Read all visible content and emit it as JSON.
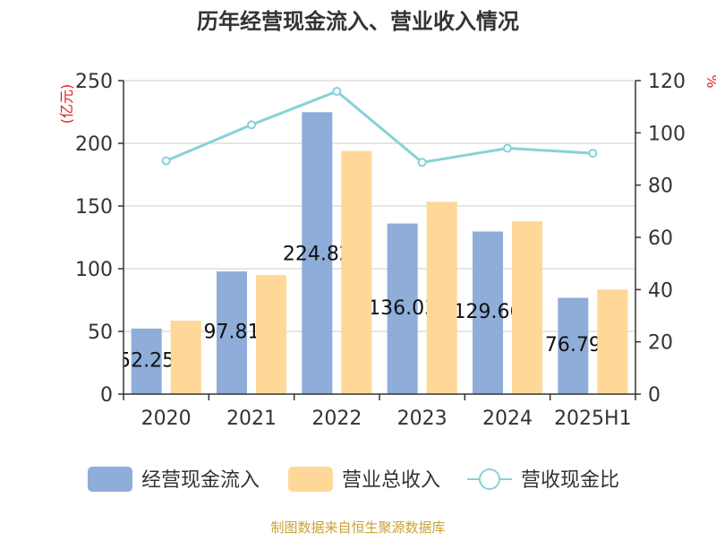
{
  "chart_data": {
    "type": "bar",
    "title": "历年经营现金流入、营业收入情况",
    "categories": [
      "2020",
      "2021",
      "2022",
      "2023",
      "2024",
      "2025H1"
    ],
    "y_left_label": "(亿元)",
    "y_right_label": "%",
    "y_left_range": [
      0,
      250
    ],
    "y_left_ticks": [
      0,
      50,
      100,
      150,
      200,
      250
    ],
    "y_right_range": [
      0,
      120
    ],
    "y_right_ticks": [
      0,
      20,
      40,
      60,
      80,
      100,
      120
    ],
    "grid": true,
    "legend_position": "bottom",
    "series": [
      {
        "name": "经营现金流入",
        "kind": "bar",
        "axis": "left",
        "color": "#8eadd9",
        "values": [
          52.25,
          97.81,
          224.82,
          136.03,
          129.66,
          76.79
        ]
      },
      {
        "name": "营业总收入",
        "kind": "bar",
        "axis": "left",
        "color": "#ffd899",
        "values": [
          58.5,
          94.9,
          193.9,
          153.3,
          137.8,
          83.3
        ]
      },
      {
        "name": "营收现金比",
        "kind": "line",
        "axis": "right",
        "color": "#87d2d6",
        "values": [
          89.3,
          103.1,
          115.9,
          88.7,
          94.1,
          92.2
        ]
      }
    ],
    "data_labels": [
      "52.25",
      "97.81",
      "224.82",
      "136.03",
      "129.66",
      "76.79"
    ]
  },
  "source": "制图数据来自恒生聚源数据库"
}
